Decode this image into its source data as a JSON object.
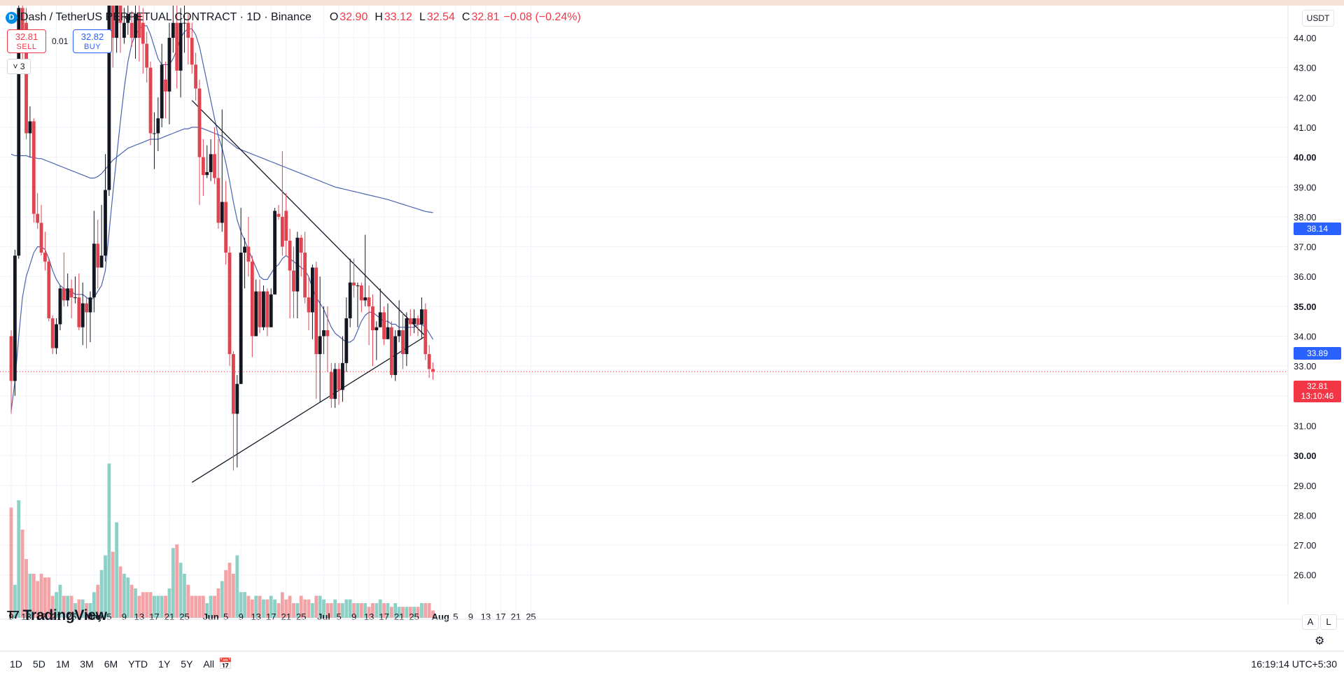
{
  "legend": {
    "symbol_icon": "dash-coin-icon",
    "title": "Dash / TetherUS PERPETUAL CONTRACT · 1D · Binance",
    "o_label": "O",
    "o_value": "32.90",
    "h_label": "H",
    "h_value": "33.12",
    "l_label": "L",
    "l_value": "32.54",
    "c_label": "C",
    "c_value": "32.81",
    "change": "−0.08 (−0.24%)"
  },
  "orders": {
    "sell_price": "32.81",
    "sell_label": "SELL",
    "spread": "0.01",
    "buy_price": "32.82",
    "buy_label": "BUY"
  },
  "indicators_collapsed": "3",
  "currency": "USDT",
  "logo_text": "TradingView",
  "scale_buttons": {
    "auto": "A",
    "log": "L"
  },
  "time_ranges": [
    "1D",
    "5D",
    "1M",
    "3M",
    "6M",
    "YTD",
    "1Y",
    "5Y",
    "All"
  ],
  "clock": "16:19:14 UTC+5:30",
  "price_labels": {
    "ma_slow": "38.14",
    "ma_fast": "33.89",
    "last_price": "32.81",
    "countdown": "13:10:46"
  },
  "colors": {
    "up": "#131722",
    "down": "#e04451",
    "volume_up": "#8fd0c6",
    "volume_down": "#f3a3a5",
    "ma": "#4c64b0",
    "accent": "#2962ff",
    "sell": "#f23645"
  },
  "chart_data": {
    "type": "candlestick",
    "symbol": "Dash / TetherUS PERPETUAL CONTRACT",
    "interval": "1D",
    "exchange": "Binance",
    "ylim": [
      25.3,
      45.0
    ],
    "grid": true,
    "y_ticks": [
      "26.00",
      "27.00",
      "28.00",
      "29.00",
      "30.00",
      "31.00",
      "32.00",
      "33.00",
      "34.00",
      "35.00",
      "36.00",
      "37.00",
      "38.00",
      "39.00",
      "40.00",
      "41.00",
      "42.00",
      "43.00",
      "44.00"
    ],
    "x_ticks": [
      {
        "i": 0,
        "label": "9"
      },
      {
        "i": 4,
        "label": "13"
      },
      {
        "i": 8,
        "label": "17"
      },
      {
        "i": 12,
        "label": "21"
      },
      {
        "i": 16,
        "label": "25"
      },
      {
        "i": 22,
        "label": "May"
      },
      {
        "i": 26,
        "label": "5"
      },
      {
        "i": 30,
        "label": "9"
      },
      {
        "i": 34,
        "label": "13"
      },
      {
        "i": 38,
        "label": "17"
      },
      {
        "i": 42,
        "label": "21"
      },
      {
        "i": 46,
        "label": "25"
      },
      {
        "i": 53,
        "label": "Jun"
      },
      {
        "i": 57,
        "label": "5"
      },
      {
        "i": 61,
        "label": "9"
      },
      {
        "i": 65,
        "label": "13"
      },
      {
        "i": 69,
        "label": "17"
      },
      {
        "i": 73,
        "label": "21"
      },
      {
        "i": 77,
        "label": "25"
      },
      {
        "i": 83,
        "label": "Jul"
      },
      {
        "i": 87,
        "label": "5"
      },
      {
        "i": 91,
        "label": "9"
      },
      {
        "i": 95,
        "label": "13"
      },
      {
        "i": 99,
        "label": "17"
      },
      {
        "i": 103,
        "label": "21"
      },
      {
        "i": 107,
        "label": "25"
      },
      {
        "i": 114,
        "label": "Aug"
      },
      {
        "i": 118,
        "label": "5"
      },
      {
        "i": 122,
        "label": "9"
      },
      {
        "i": 126,
        "label": "13"
      },
      {
        "i": 130,
        "label": "17"
      },
      {
        "i": 134,
        "label": "21"
      },
      {
        "i": 138,
        "label": "25"
      }
    ],
    "candles": [
      [
        34.0,
        32.5,
        34.2,
        31.4,
        1.5
      ],
      [
        32.5,
        36.7,
        36.9,
        32.0,
        0.45
      ],
      [
        36.7,
        45.0,
        45.2,
        36.6,
        1.6
      ],
      [
        45.0,
        43.5,
        45.3,
        42.9,
        1.2
      ],
      [
        44.5,
        40.8,
        45.0,
        40.6,
        0.8
      ],
      [
        40.8,
        41.2,
        41.7,
        40.0,
        0.6
      ],
      [
        41.2,
        38.1,
        41.3,
        37.8,
        0.6
      ],
      [
        38.1,
        37.8,
        38.8,
        37.6,
        0.5
      ],
      [
        37.8,
        36.8,
        38.4,
        36.7,
        0.6
      ],
      [
        36.8,
        36.5,
        37.5,
        36.2,
        0.55
      ],
      [
        36.5,
        34.6,
        36.6,
        34.5,
        0.55
      ],
      [
        34.6,
        33.6,
        34.7,
        33.4,
        0.3
      ],
      [
        33.6,
        34.4,
        34.6,
        33.4,
        0.35
      ],
      [
        34.4,
        35.6,
        35.7,
        34.2,
        0.45
      ],
      [
        35.6,
        35.2,
        36.8,
        35.0,
        0.3
      ],
      [
        35.2,
        35.6,
        36.1,
        35.0,
        0.3
      ],
      [
        35.6,
        35.3,
        35.9,
        34.6,
        0.3
      ],
      [
        35.3,
        35.3,
        36.0,
        35.1,
        0.2
      ],
      [
        35.3,
        34.3,
        36.1,
        34.2,
        0.25
      ],
      [
        34.3,
        35.1,
        35.8,
        33.7,
        0.25
      ],
      [
        35.1,
        34.8,
        35.3,
        33.6,
        0.2
      ],
      [
        34.8,
        35.3,
        35.5,
        33.8,
        0.2
      ],
      [
        35.3,
        37.1,
        38.2,
        34.8,
        0.35
      ],
      [
        37.1,
        36.3,
        37.9,
        35.6,
        0.45
      ],
      [
        36.3,
        36.7,
        38.4,
        36.3,
        0.65
      ],
      [
        36.7,
        38.9,
        40.1,
        36.5,
        0.85
      ],
      [
        38.9,
        46.8,
        47.0,
        38.7,
        2.1
      ],
      [
        45.5,
        44.0,
        46.0,
        43.0,
        0.9
      ],
      [
        44.0,
        45.5,
        46.0,
        43.5,
        1.3
      ],
      [
        45.5,
        44.5,
        45.8,
        43.5,
        0.7
      ],
      [
        44.0,
        44.5,
        45.0,
        43.8,
        0.6
      ],
      [
        44.5,
        44.8,
        45.1,
        44.1,
        0.55
      ],
      [
        44.5,
        44.0,
        44.9,
        43.7,
        0.45
      ],
      [
        44.0,
        44.8,
        45.2,
        43.3,
        0.4
      ],
      [
        44.8,
        44.0,
        45.1,
        43.2,
        0.3
      ],
      [
        44.5,
        43.8,
        45.0,
        42.8,
        0.35
      ],
      [
        43.8,
        43.0,
        44.2,
        42.5,
        0.35
      ],
      [
        43.0,
        40.8,
        43.2,
        40.4,
        0.35
      ],
      [
        40.8,
        40.8,
        41.5,
        39.6,
        0.3
      ],
      [
        40.8,
        41.3,
        42.0,
        40.2,
        0.3
      ],
      [
        41.3,
        43.1,
        43.8,
        41.0,
        0.3
      ],
      [
        42.6,
        42.2,
        43.2,
        41.3,
        0.3
      ],
      [
        42.2,
        44.0,
        44.5,
        41.1,
        0.4
      ],
      [
        44.0,
        44.5,
        45.5,
        43.5,
        0.95
      ],
      [
        44.5,
        42.9,
        45.5,
        42.3,
        1.0
      ],
      [
        42.9,
        44.5,
        45.0,
        42.0,
        0.75
      ],
      [
        44.5,
        44.5,
        45.5,
        43.5,
        0.6
      ],
      [
        44.5,
        44.0,
        44.8,
        43.1,
        0.45
      ],
      [
        44.0,
        43.1,
        44.5,
        42.8,
        0.3
      ],
      [
        43.1,
        42.3,
        43.5,
        41.9,
        0.3
      ],
      [
        42.3,
        40.0,
        42.6,
        38.4,
        0.3
      ],
      [
        40.0,
        39.4,
        40.6,
        38.7,
        0.3
      ],
      [
        39.4,
        39.5,
        40.4,
        39.3,
        0.2
      ],
      [
        39.5,
        40.1,
        40.6,
        39.2,
        0.3
      ],
      [
        40.1,
        39.3,
        41.0,
        39.1,
        0.3
      ],
      [
        39.3,
        37.8,
        40.6,
        37.6,
        0.4
      ],
      [
        37.8,
        38.5,
        41.6,
        37.5,
        0.5
      ],
      [
        38.5,
        36.8,
        39.2,
        36.4,
        0.65
      ],
      [
        36.8,
        33.4,
        37.0,
        33.0,
        0.75
      ],
      [
        33.4,
        31.4,
        33.5,
        29.5,
        0.6
      ],
      [
        31.4,
        32.4,
        32.7,
        29.6,
        0.85
      ],
      [
        32.4,
        36.8,
        38.3,
        32.4,
        0.35
      ],
      [
        36.8,
        37.0,
        37.3,
        35.6,
        0.35
      ],
      [
        37.0,
        36.5,
        38.0,
        36.0,
        0.3
      ],
      [
        36.5,
        34.0,
        36.7,
        33.3,
        0.25
      ],
      [
        34.0,
        35.5,
        35.9,
        34.0,
        0.3
      ],
      [
        35.5,
        34.3,
        35.9,
        34.1,
        0.3
      ],
      [
        34.3,
        35.5,
        35.7,
        34.2,
        0.25
      ],
      [
        35.5,
        34.3,
        35.6,
        34.0,
        0.25
      ],
      [
        34.3,
        35.4,
        35.6,
        34.3,
        0.3
      ],
      [
        35.4,
        38.2,
        38.3,
        35.4,
        0.25
      ],
      [
        38.1,
        38.0,
        38.4,
        37.9,
        0.2
      ],
      [
        38.0,
        37.0,
        40.2,
        36.7,
        0.35
      ],
      [
        38.2,
        37.2,
        38.8,
        36.7,
        0.25
      ],
      [
        37.2,
        36.2,
        37.6,
        34.6,
        0.3
      ],
      [
        36.2,
        35.5,
        37.0,
        34.6,
        0.2
      ],
      [
        35.5,
        37.3,
        37.5,
        34.6,
        0.2
      ],
      [
        37.3,
        36.8,
        37.4,
        36.0,
        0.3
      ],
      [
        36.8,
        35.3,
        37.5,
        35.1,
        0.25
      ],
      [
        35.3,
        34.8,
        36.0,
        34.2,
        0.25
      ],
      [
        34.8,
        36.3,
        36.4,
        33.9,
        0.2
      ],
      [
        36.3,
        33.4,
        36.5,
        31.9,
        0.3
      ],
      [
        33.4,
        34.0,
        36.0,
        31.8,
        0.3
      ],
      [
        34.0,
        34.2,
        35.0,
        33.4,
        0.25
      ],
      [
        34.2,
        34.0,
        35.0,
        32.8,
        0.2
      ],
      [
        32.8,
        31.9,
        33.1,
        31.6,
        0.2
      ],
      [
        31.9,
        32.9,
        33.1,
        31.6,
        0.25
      ],
      [
        32.9,
        32.2,
        33.1,
        31.7,
        0.2
      ],
      [
        32.2,
        33.1,
        34.0,
        31.8,
        0.2
      ],
      [
        33.1,
        34.6,
        35.3,
        32.8,
        0.25
      ],
      [
        34.6,
        35.8,
        36.6,
        34.3,
        0.25
      ],
      [
        35.8,
        35.7,
        36.6,
        35.3,
        0.2
      ],
      [
        35.7,
        35.7,
        35.8,
        34.3,
        0.2
      ],
      [
        35.7,
        35.2,
        35.8,
        34.8,
        0.2
      ],
      [
        35.2,
        35.3,
        37.4,
        35.0,
        0.2
      ],
      [
        35.3,
        35.0,
        35.7,
        33.7,
        0.15
      ],
      [
        35.0,
        34.2,
        35.4,
        33.0,
        0.2
      ],
      [
        34.2,
        34.3,
        34.5,
        33.2,
        0.2
      ],
      [
        34.3,
        34.8,
        35.6,
        34.3,
        0.25
      ],
      [
        34.8,
        33.9,
        35.0,
        33.7,
        0.2
      ],
      [
        33.9,
        34.3,
        35.1,
        33.9,
        0.2
      ],
      [
        34.3,
        32.7,
        34.5,
        32.6,
        0.15
      ],
      [
        32.7,
        34.0,
        34.2,
        32.5,
        0.2
      ],
      [
        34.0,
        34.2,
        35.2,
        33.8,
        0.15
      ],
      [
        34.2,
        33.4,
        34.8,
        32.9,
        0.15
      ],
      [
        33.4,
        34.6,
        34.8,
        33.0,
        0.15
      ],
      [
        34.6,
        34.4,
        34.9,
        34.0,
        0.15
      ],
      [
        34.4,
        34.6,
        34.9,
        34.1,
        0.15
      ],
      [
        34.6,
        34.4,
        34.7,
        34.0,
        0.15
      ],
      [
        34.4,
        34.9,
        35.3,
        33.9,
        0.2
      ],
      [
        34.9,
        33.4,
        35.1,
        33.2,
        0.2
      ],
      [
        33.4,
        32.9,
        33.7,
        32.6,
        0.2
      ],
      [
        32.9,
        32.81,
        33.12,
        32.54,
        0.1
      ]
    ],
    "ma_fast": {
      "start": 0,
      "values": [
        31.5,
        32.5,
        34.0,
        35.3,
        36.0,
        36.4,
        36.8,
        37.0,
        37.0,
        36.9,
        36.6,
        36.2,
        35.9,
        35.7,
        35.6,
        35.5,
        35.5,
        35.4,
        35.4,
        35.4,
        35.3,
        35.2,
        35.3,
        35.5,
        35.7,
        36.2,
        37.5,
        38.8,
        40.0,
        41.2,
        42.3,
        43.2,
        43.8,
        44.1,
        44.3,
        44.4,
        44.4,
        44.1,
        43.7,
        43.3,
        43.1,
        43.1,
        43.1,
        43.3,
        43.6,
        44.0,
        44.2,
        44.3,
        44.3,
        44.1,
        43.7,
        43.1,
        42.5,
        41.9,
        41.3,
        40.7,
        40.3,
        39.8,
        39.2,
        38.5,
        37.9,
        37.5,
        37.2,
        36.9,
        36.6,
        36.3,
        36.0,
        35.9,
        35.9,
        36.1,
        36.3,
        36.4,
        36.6,
        36.7,
        36.6,
        36.5,
        36.4,
        36.3,
        36.2,
        36.0,
        35.6,
        35.3,
        35.1,
        34.9,
        34.6,
        34.3,
        34.1,
        34.0,
        33.9,
        33.8,
        33.8,
        33.9,
        34.2,
        34.5,
        34.7,
        34.8,
        34.8,
        34.7,
        34.6,
        34.5,
        34.5,
        34.4,
        34.4,
        34.3,
        34.3,
        34.3,
        34.3,
        34.3,
        34.4,
        34.4,
        34.3,
        34.1,
        33.89
      ]
    },
    "ma_slow": {
      "start": 0,
      "values": [
        40.1,
        40.05,
        40.05,
        40.05,
        40.05,
        40.0,
        40.0,
        39.95,
        39.95,
        39.9,
        39.85,
        39.8,
        39.75,
        39.7,
        39.65,
        39.6,
        39.55,
        39.5,
        39.45,
        39.4,
        39.35,
        39.3,
        39.3,
        39.35,
        39.45,
        39.6,
        39.75,
        39.9,
        40.0,
        40.1,
        40.2,
        40.3,
        40.35,
        40.4,
        40.45,
        40.5,
        40.55,
        40.6,
        40.6,
        40.6,
        40.65,
        40.7,
        40.75,
        40.8,
        40.85,
        40.9,
        40.95,
        40.95,
        41.0,
        41.0,
        41.0,
        40.95,
        40.9,
        40.85,
        40.8,
        40.75,
        40.7,
        40.6,
        40.5,
        40.4,
        40.3,
        40.25,
        40.2,
        40.15,
        40.1,
        40.05,
        40.0,
        39.95,
        39.9,
        39.85,
        39.8,
        39.75,
        39.7,
        39.65,
        39.6,
        39.55,
        39.5,
        39.45,
        39.4,
        39.35,
        39.3,
        39.25,
        39.2,
        39.15,
        39.1,
        39.05,
        39.0,
        38.97,
        38.94,
        38.91,
        38.88,
        38.85,
        38.82,
        38.79,
        38.76,
        38.73,
        38.7,
        38.67,
        38.64,
        38.61,
        38.58,
        38.54,
        38.5,
        38.46,
        38.42,
        38.38,
        38.34,
        38.3,
        38.26,
        38.22,
        38.18,
        38.16,
        38.14
      ]
    },
    "trendlines": [
      {
        "from": {
          "i": 48,
          "price": 41.9
        },
        "to": {
          "i": 110,
          "price": 34.0
        }
      },
      {
        "from": {
          "i": 48,
          "price": 29.1
        },
        "to": {
          "i": 110,
          "price": 34.0
        }
      }
    ],
    "last_price": 32.81,
    "annotations": [
      "38.14",
      "33.89",
      "32.81",
      "13:10:46"
    ]
  }
}
